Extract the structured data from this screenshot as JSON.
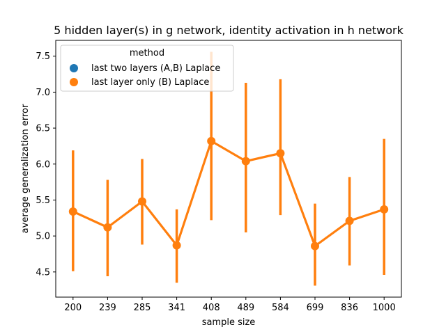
{
  "chart_data": {
    "type": "line",
    "title": "5 hidden layer(s) in g network, identity activation in h network",
    "xlabel": "sample size",
    "ylabel": "average generalization error",
    "categories": [
      "200",
      "239",
      "285",
      "341",
      "408",
      "489",
      "584",
      "699",
      "836",
      "1000"
    ],
    "ylim": [
      4.15,
      7.72
    ],
    "yticks": [
      4.5,
      5.0,
      5.5,
      6.0,
      6.5,
      7.0,
      7.5
    ],
    "ytick_labels": [
      "4.5",
      "5.0",
      "5.5",
      "6.0",
      "6.5",
      "7.0",
      "7.5"
    ],
    "grid": false,
    "legend": {
      "title": "method",
      "placement": "top-left",
      "entries": [
        {
          "label": "last two layers (A,B) Laplace",
          "color": "#1f77b4"
        },
        {
          "label": "last layer only (B) Laplace",
          "color": "#ff7f0e"
        }
      ]
    },
    "series": [
      {
        "name": "last layer only (B) Laplace",
        "color": "#ff7f0e",
        "values": [
          5.34,
          5.12,
          5.48,
          4.87,
          6.32,
          6.04,
          6.15,
          4.86,
          5.21,
          5.37
        ],
        "err_low": [
          4.51,
          4.44,
          4.88,
          4.35,
          5.22,
          5.05,
          5.29,
          4.31,
          4.59,
          4.46
        ],
        "err_high": [
          6.19,
          5.78,
          6.07,
          5.37,
          7.56,
          7.13,
          7.18,
          5.45,
          5.82,
          6.35
        ]
      }
    ]
  }
}
